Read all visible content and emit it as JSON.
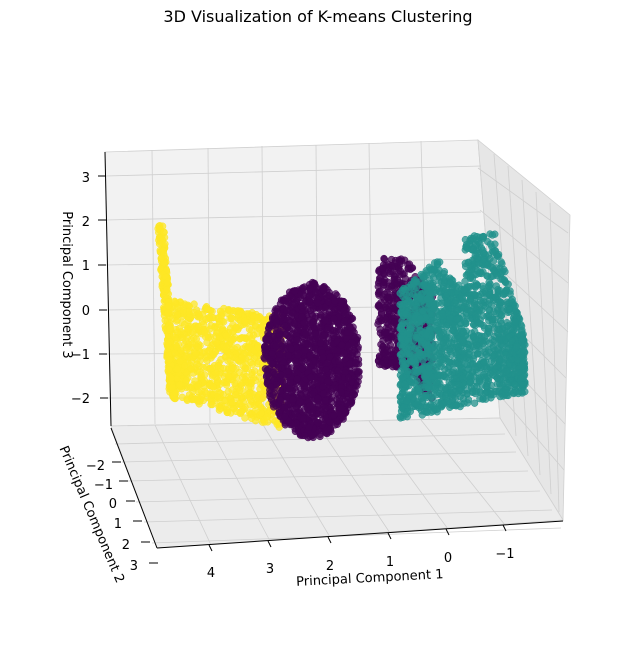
{
  "chart_data": {
    "type": "scatter",
    "projection": "3d",
    "title": "3D Visualization of K-means Clustering",
    "xlabel": "Principal Component 1",
    "ylabel": "Principal Component 2",
    "zlabel": "Principal Component 3",
    "xticks": [
      "4",
      "3",
      "2",
      "1",
      "0",
      "−1"
    ],
    "yticks": [
      "−2",
      "−1",
      "0",
      "1",
      "2",
      "3"
    ],
    "zticks": [
      "3",
      "2",
      "1",
      "0",
      "−1",
      "−2"
    ],
    "xlim": [
      -2,
      5
    ],
    "ylim": [
      -3,
      3
    ],
    "zlim": [
      -3,
      3.5
    ],
    "grid": true,
    "series": [
      {
        "cluster": 0,
        "color": "#440154",
        "pc1_range": [
          -0.2,
          2.6
        ],
        "pc3_range": [
          -2.8,
          1.2
        ]
      },
      {
        "cluster": 1,
        "color": "#21918c",
        "pc1_range": [
          -1.6,
          0.8
        ],
        "pc3_range": [
          -2.5,
          2.2
        ]
      },
      {
        "cluster": 2,
        "color": "#fde725",
        "pc1_range": [
          2.4,
          4.9
        ],
        "pc3_range": [
          -2.4,
          2.0
        ]
      }
    ]
  }
}
